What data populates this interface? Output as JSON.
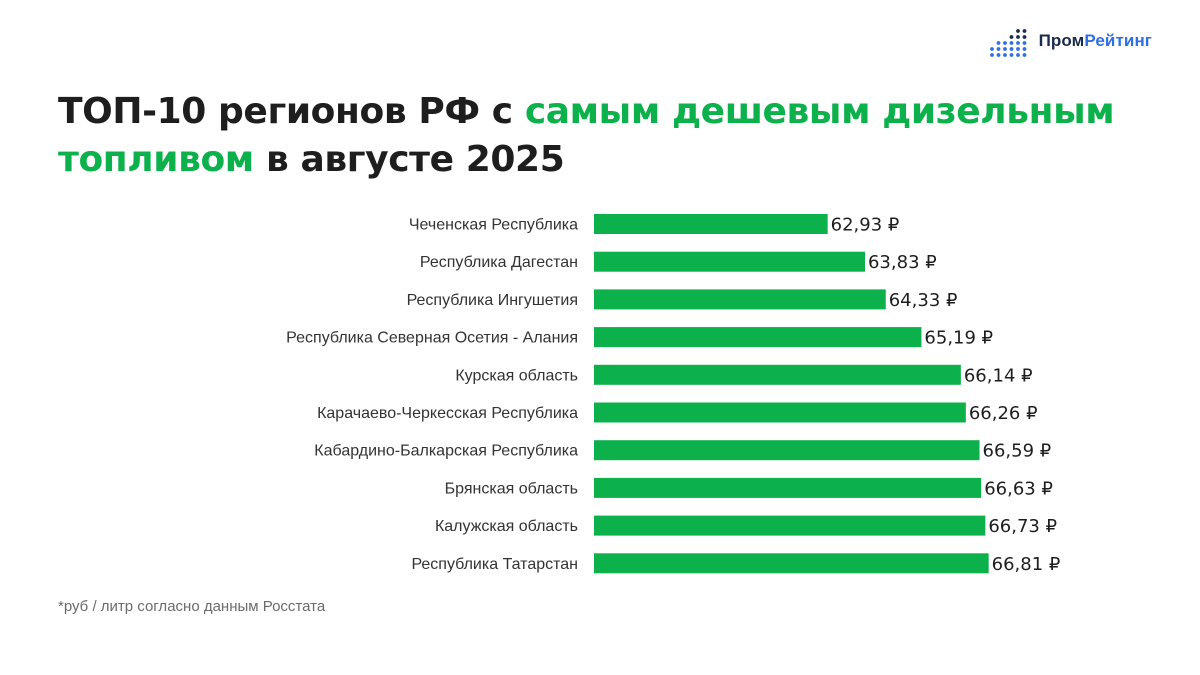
{
  "brand": {
    "name_part1": "Пром",
    "name_part2": "Рейтинг",
    "color_dark": "#1a2a4a",
    "color_blue": "#2f6fe6",
    "icon": "bar-dots-logo-icon"
  },
  "colors": {
    "accent_green": "#0cb14b",
    "bar": "#0cb14b",
    "text_dark": "#1e1e1e",
    "label_gray": "#333333",
    "footnote_gray": "#6b6b6b"
  },
  "title": {
    "part1": "ТОП-10 регионов РФ с ",
    "part2_highlight": "самым дешевым дизельным топливом",
    "part3": " в августе 2025"
  },
  "footnote": "*руб / литр согласно данным Росстата",
  "chart_data": {
    "type": "bar",
    "orientation": "horizontal",
    "title": "ТОП-10 регионов РФ с самым дешевым дизельным топливом в августе 2025",
    "value_suffix": " ₽",
    "categories": [
      "Чеченская Республика",
      "Республика Дагестан",
      "Республика Ингушетия",
      "Республика Северная Осетия - Алания",
      "Курская область",
      "Карачаево-Черкесская Республика",
      "Кабардино-Балкарская Республика",
      "Брянская область",
      "Калужская область",
      "Республика Татарстан"
    ],
    "values": [
      62.93,
      63.83,
      64.33,
      65.19,
      66.14,
      66.26,
      66.59,
      66.63,
      66.73,
      66.81
    ],
    "value_labels": [
      "62,93 ₽",
      "63,83 ₽",
      "64,33 ₽",
      "65,19 ₽",
      "66,14 ₽",
      "66,26 ₽",
      "66,59 ₽",
      "66,63 ₽",
      "66,73 ₽",
      "66,81 ₽"
    ],
    "xlim": [
      57.3,
      72
    ],
    "grid": false,
    "legend": "none"
  }
}
